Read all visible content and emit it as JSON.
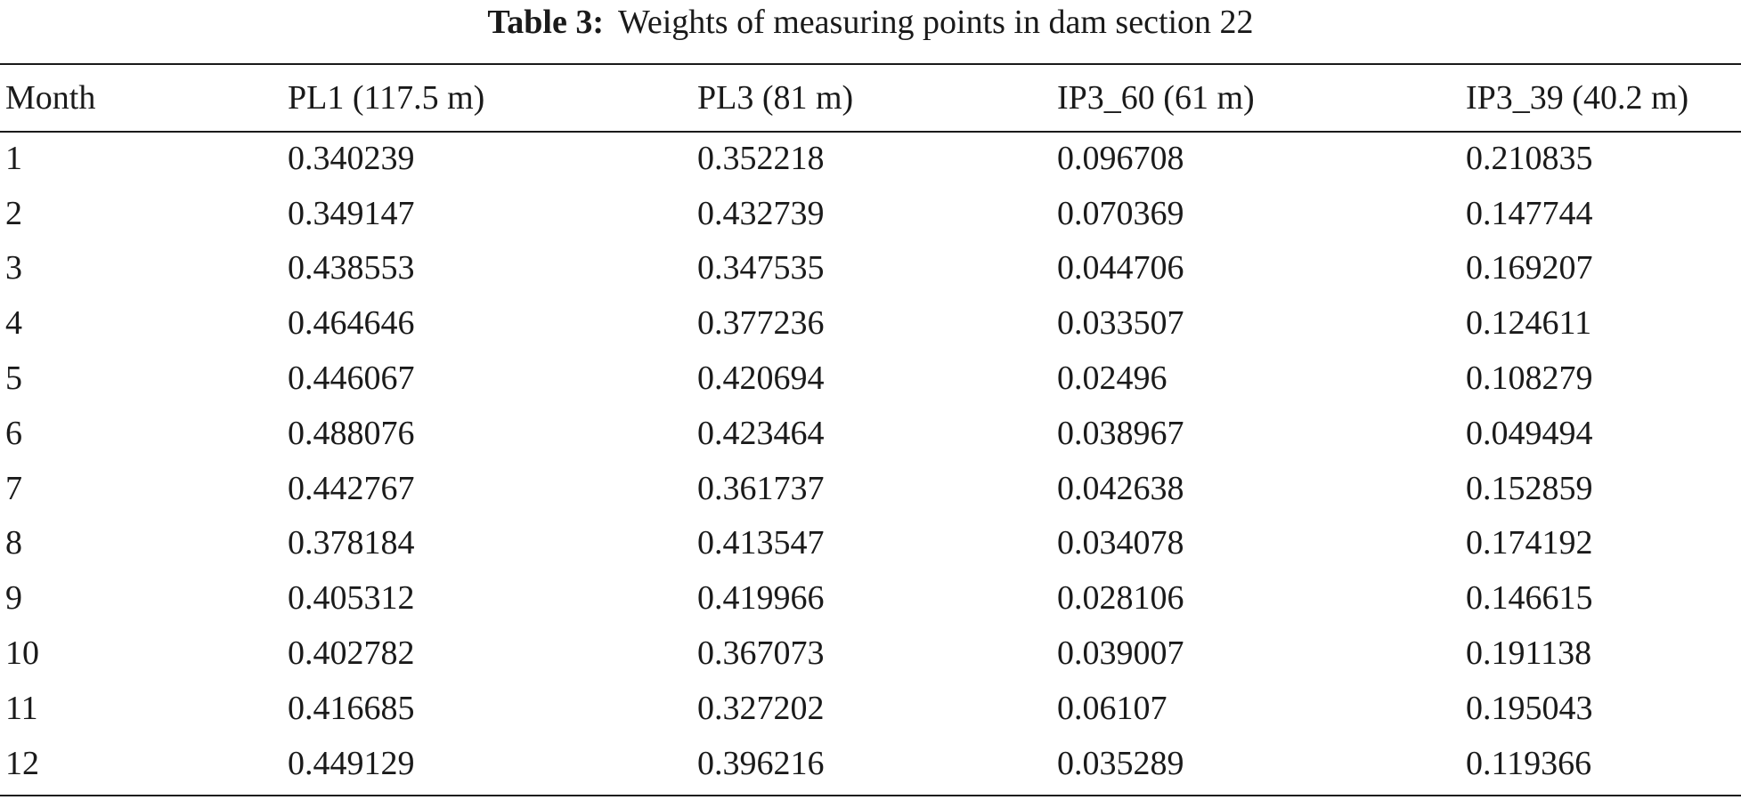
{
  "caption": {
    "label": "Table 3:",
    "text": "Weights of measuring points in dam section 22"
  },
  "table": {
    "headers": [
      "Month",
      "PL1 (117.5 m)",
      "PL3 (81 m)",
      "IP3_60 (61 m)",
      "IP3_39 (40.2 m)"
    ],
    "rows": [
      [
        "1",
        "0.340239",
        "0.352218",
        "0.096708",
        "0.210835"
      ],
      [
        "2",
        "0.349147",
        "0.432739",
        "0.070369",
        "0.147744"
      ],
      [
        "3",
        "0.438553",
        "0.347535",
        "0.044706",
        "0.169207"
      ],
      [
        "4",
        "0.464646",
        "0.377236",
        "0.033507",
        "0.124611"
      ],
      [
        "5",
        "0.446067",
        "0.420694",
        "0.02496",
        "0.108279"
      ],
      [
        "6",
        "0.488076",
        "0.423464",
        "0.038967",
        "0.049494"
      ],
      [
        "7",
        "0.442767",
        "0.361737",
        "0.042638",
        "0.152859"
      ],
      [
        "8",
        "0.378184",
        "0.413547",
        "0.034078",
        "0.174192"
      ],
      [
        "9",
        "0.405312",
        "0.419966",
        "0.028106",
        "0.146615"
      ],
      [
        "10",
        "0.402782",
        "0.367073",
        "0.039007",
        "0.191138"
      ],
      [
        "11",
        "0.416685",
        "0.327202",
        "0.06107",
        "0.195043"
      ],
      [
        "12",
        "0.449129",
        "0.396216",
        "0.035289",
        "0.119366"
      ]
    ]
  }
}
